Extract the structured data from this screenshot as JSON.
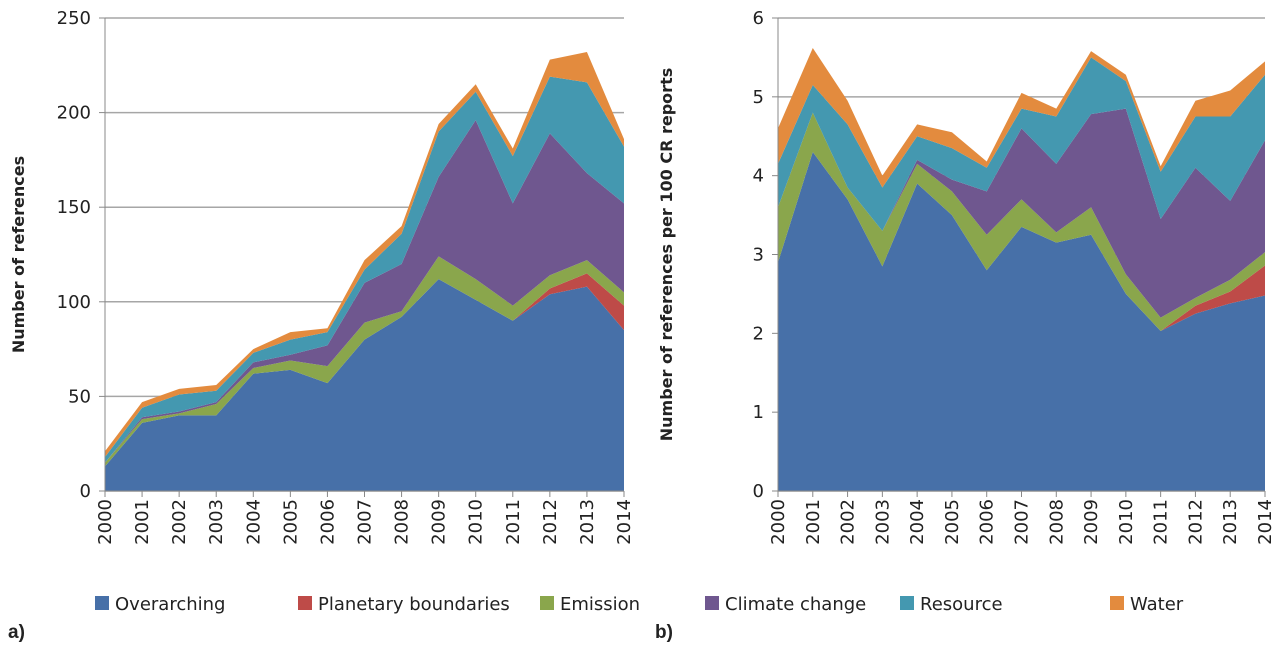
{
  "chart_data": [
    {
      "type": "stacked-area",
      "panel_label": "a)",
      "y_label": "Number of references",
      "categories": [
        "2000",
        "2001",
        "2002",
        "2003",
        "2004",
        "2005",
        "2006",
        "2007",
        "2008",
        "2009",
        "2010",
        "2011",
        "2012",
        "2013",
        "2014"
      ],
      "ylim": [
        0,
        250
      ],
      "yticks": [
        0,
        50,
        100,
        150,
        200,
        250
      ],
      "grid": true,
      "series": [
        {
          "name": "Overarching",
          "color": "#4770a8",
          "values": [
            13,
            36,
            40,
            40,
            62,
            64,
            57,
            80,
            92,
            112,
            101,
            90,
            104,
            108,
            85
          ]
        },
        {
          "name": "Planetary boundaries",
          "color": "#be4b48",
          "values": [
            0,
            0,
            0,
            0,
            0,
            0,
            0,
            0,
            0,
            0,
            0,
            0,
            3,
            7,
            13
          ]
        },
        {
          "name": "Emission",
          "color": "#8aa64c",
          "values": [
            2,
            2,
            1,
            6,
            3,
            5,
            9,
            9,
            3,
            12,
            11,
            8,
            7,
            7,
            7
          ]
        },
        {
          "name": "Climate change",
          "color": "#6f578f",
          "values": [
            0,
            1,
            1,
            1,
            3,
            3,
            11,
            21,
            25,
            42,
            84,
            54,
            75,
            46,
            47
          ]
        },
        {
          "name": "Resource",
          "color": "#4498b0",
          "values": [
            3,
            5,
            9,
            6,
            5,
            8,
            7,
            7,
            16,
            24,
            15,
            25,
            30,
            48,
            30
          ]
        },
        {
          "name": "Water",
          "color": "#e38b3e",
          "values": [
            3,
            3,
            3,
            3,
            2,
            4,
            2,
            5,
            4,
            4,
            4,
            4,
            9,
            16,
            4
          ]
        }
      ]
    },
    {
      "type": "stacked-area",
      "panel_label": "b)",
      "y_label": "Number of references per 100 CR reports",
      "categories": [
        "2000",
        "2001",
        "2002",
        "2003",
        "2004",
        "2005",
        "2006",
        "2007",
        "2008",
        "2009",
        "2010",
        "2011",
        "2012",
        "2013",
        "2014"
      ],
      "ylim": [
        0,
        6
      ],
      "yticks": [
        0,
        1,
        2,
        3,
        4,
        5,
        6
      ],
      "grid": true,
      "series": [
        {
          "name": "Overarching",
          "color": "#4770a8",
          "values": [
            2.9,
            4.3,
            3.7,
            2.85,
            3.9,
            3.5,
            2.8,
            3.35,
            3.15,
            3.25,
            2.5,
            2.03,
            2.25,
            2.38,
            2.48
          ]
        },
        {
          "name": "Planetary boundaries",
          "color": "#be4b48",
          "values": [
            0,
            0,
            0,
            0,
            0,
            0,
            0,
            0,
            0,
            0,
            0,
            0,
            0.1,
            0.15,
            0.38
          ]
        },
        {
          "name": "Emission",
          "color": "#8aa64c",
          "values": [
            0.7,
            0.5,
            0.15,
            0.45,
            0.25,
            0.3,
            0.45,
            0.35,
            0.13,
            0.35,
            0.25,
            0.17,
            0.1,
            0.15,
            0.17
          ]
        },
        {
          "name": "Climate change",
          "color": "#6f578f",
          "values": [
            0,
            0,
            0,
            0,
            0.05,
            0.15,
            0.55,
            0.9,
            0.87,
            1.18,
            2.1,
            1.25,
            1.65,
            1.0,
            1.42
          ]
        },
        {
          "name": "Resource",
          "color": "#4498b0",
          "values": [
            0.55,
            0.35,
            0.8,
            0.55,
            0.3,
            0.4,
            0.3,
            0.25,
            0.6,
            0.72,
            0.35,
            0.6,
            0.65,
            1.07,
            0.83
          ]
        },
        {
          "name": "Water",
          "color": "#e38b3e",
          "values": [
            0.45,
            0.47,
            0.3,
            0.15,
            0.15,
            0.2,
            0.08,
            0.2,
            0.1,
            0.08,
            0.08,
            0.07,
            0.2,
            0.33,
            0.17
          ]
        }
      ]
    }
  ]
}
